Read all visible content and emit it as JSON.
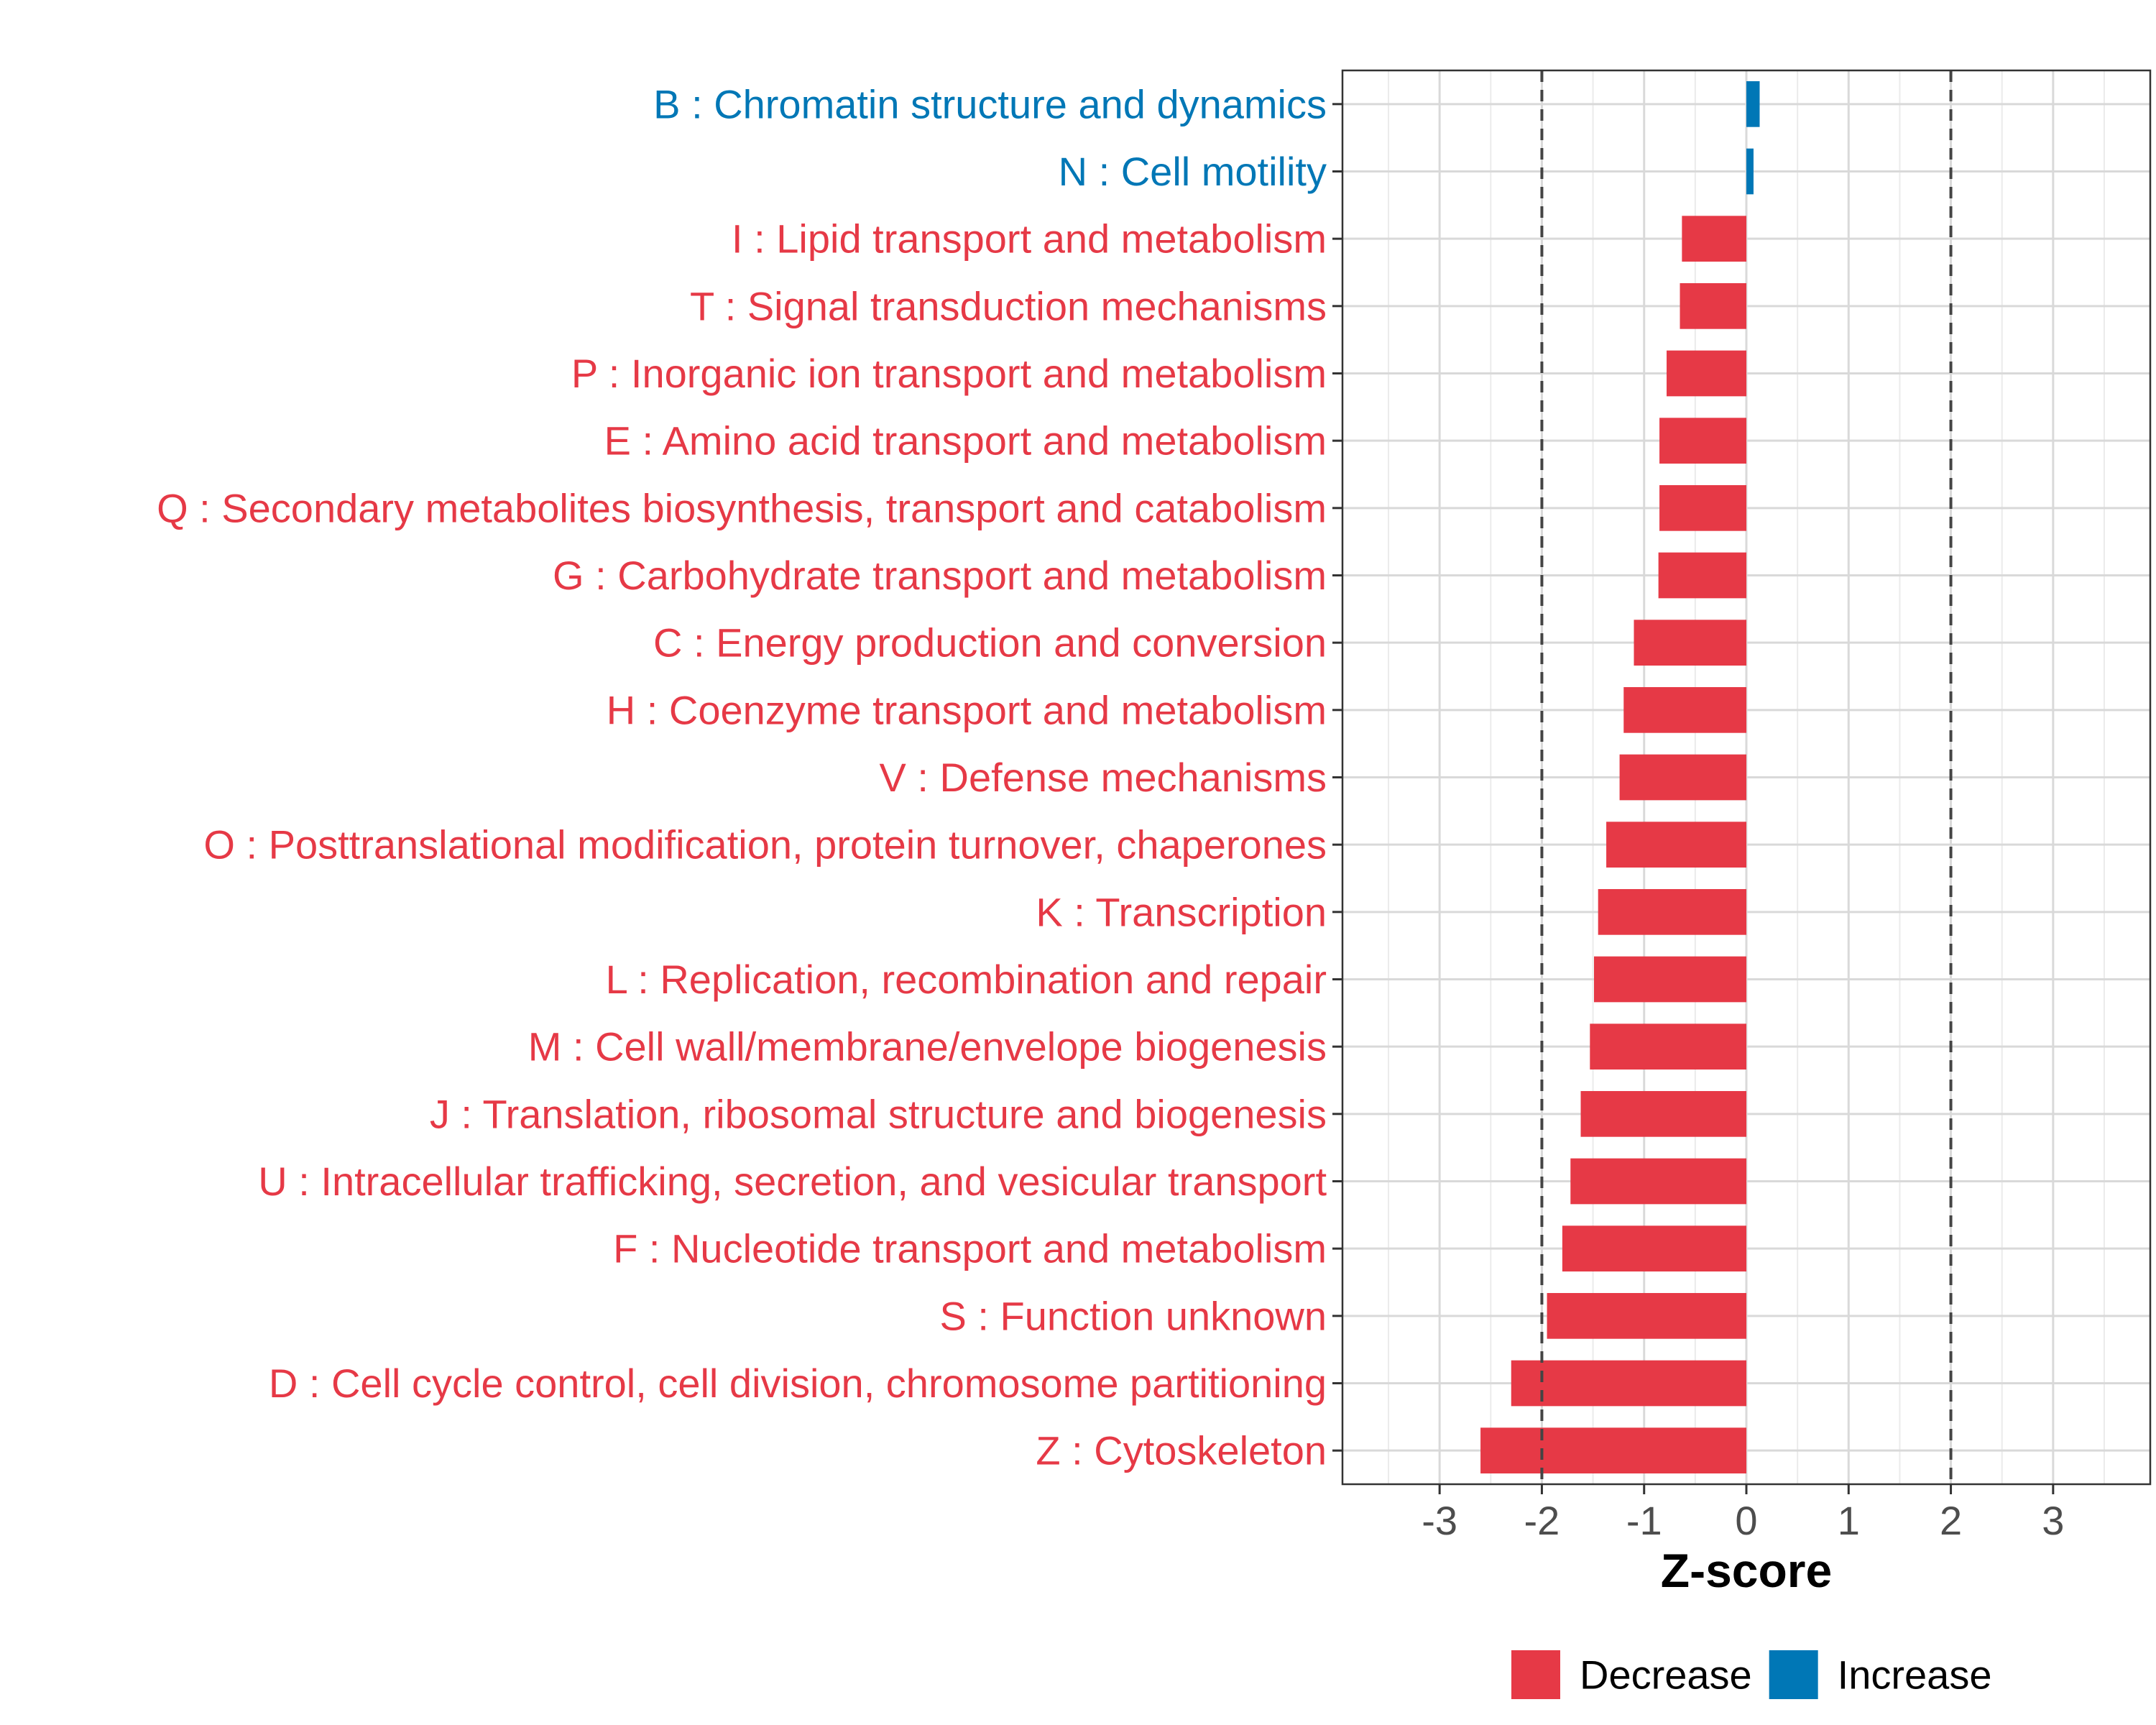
{
  "chart_data": {
    "type": "bar",
    "orientation": "horizontal",
    "xlabel": "Z-score",
    "xlim": [
      -3.95,
      3.95
    ],
    "xticks": [
      -3,
      -2,
      -1,
      0,
      1,
      2,
      3
    ],
    "reference_lines": [
      -2,
      2
    ],
    "grid": true,
    "colors": {
      "Decrease": "#e63946",
      "Increase": "#0077b6"
    },
    "legend": {
      "position": "bottom",
      "items": [
        "Decrease",
        "Increase"
      ]
    },
    "categories": [
      "B : Chromatin structure and dynamics",
      "N : Cell motility",
      "I : Lipid transport and metabolism",
      "T : Signal transduction mechanisms",
      "P : Inorganic ion transport and metabolism",
      "E : Amino acid transport and metabolism",
      "Q : Secondary metabolites biosynthesis, transport and catabolism",
      "G : Carbohydrate transport and metabolism",
      "C : Energy production and conversion",
      "H : Coenzyme transport and metabolism",
      "V : Defense mechanisms",
      "O : Posttranslational modification, protein turnover, chaperones",
      "K : Transcription",
      "L : Replication, recombination and repair",
      "M : Cell wall/membrane/envelope biogenesis",
      "J : Translation, ribosomal structure and biogenesis",
      "U : Intracellular trafficking, secretion, and vesicular transport",
      "F : Nucleotide transport and metabolism",
      "S : Function unknown",
      "D : Cell cycle control, cell division, chromosome partitioning",
      "Z : Cytoskeleton"
    ],
    "values": [
      0.13,
      0.07,
      -0.63,
      -0.65,
      -0.78,
      -0.85,
      -0.85,
      -0.86,
      -1.1,
      -1.2,
      -1.24,
      -1.37,
      -1.45,
      -1.49,
      -1.53,
      -1.62,
      -1.72,
      -1.8,
      -1.95,
      -2.3,
      -2.6
    ],
    "direction": [
      "Increase",
      "Increase",
      "Decrease",
      "Decrease",
      "Decrease",
      "Decrease",
      "Decrease",
      "Decrease",
      "Decrease",
      "Decrease",
      "Decrease",
      "Decrease",
      "Decrease",
      "Decrease",
      "Decrease",
      "Decrease",
      "Decrease",
      "Decrease",
      "Decrease",
      "Decrease",
      "Decrease"
    ]
  }
}
